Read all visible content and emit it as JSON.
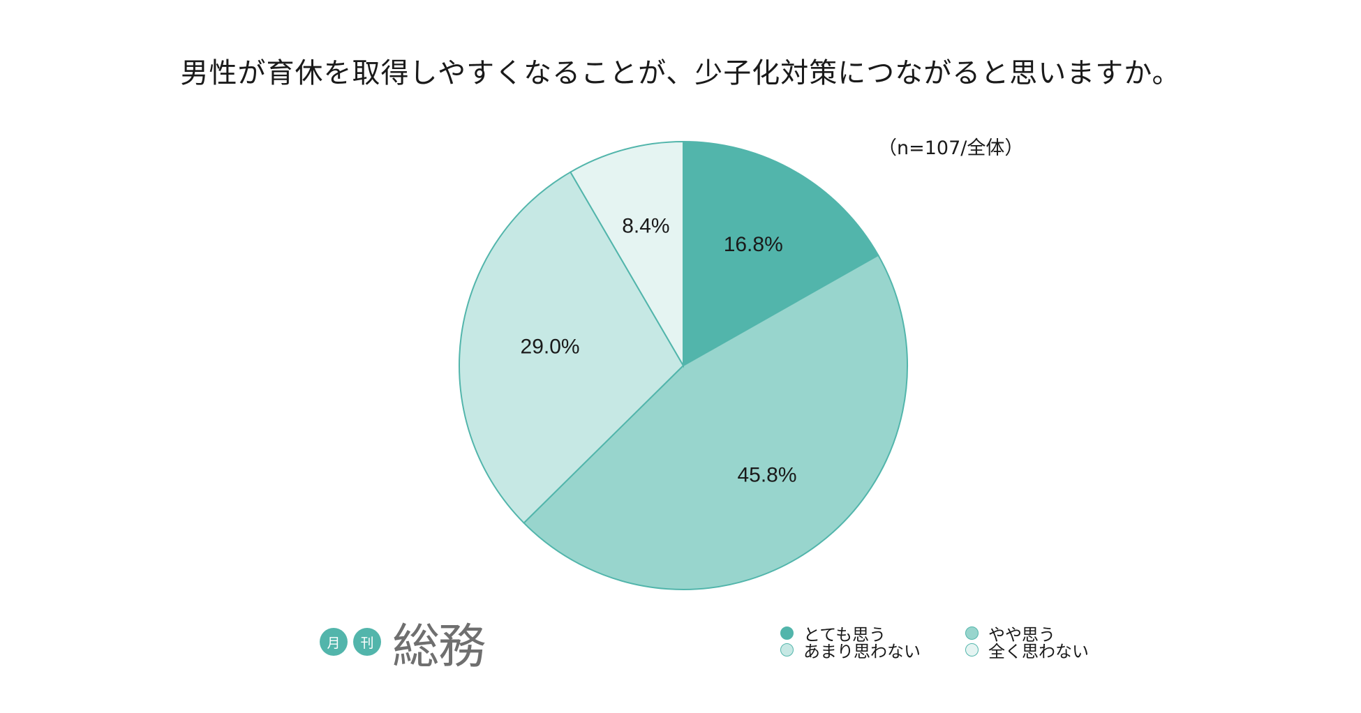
{
  "title": "男性が育休を取得しやすくなることが、少子化対策につながると思いますか。",
  "sample_note": "（n=107/全体）",
  "logo": {
    "badge1": "月",
    "badge2": "刊",
    "name": "総務"
  },
  "chart_data": {
    "type": "pie",
    "title": "男性が育休を取得しやすくなることが、少子化対策につながると思いますか。",
    "categories": [
      "とても思う",
      "やや思う",
      "あまり思わない",
      "全く思わない"
    ],
    "values": [
      16.8,
      45.8,
      29.0,
      8.4
    ],
    "value_labels": [
      "16.8%",
      "45.8%",
      "29.0%",
      "8.4%"
    ],
    "colors": [
      "#52b5ab",
      "#98d5cd",
      "#c6e8e4",
      "#e5f4f2"
    ],
    "legend_position": "bottom-right"
  }
}
